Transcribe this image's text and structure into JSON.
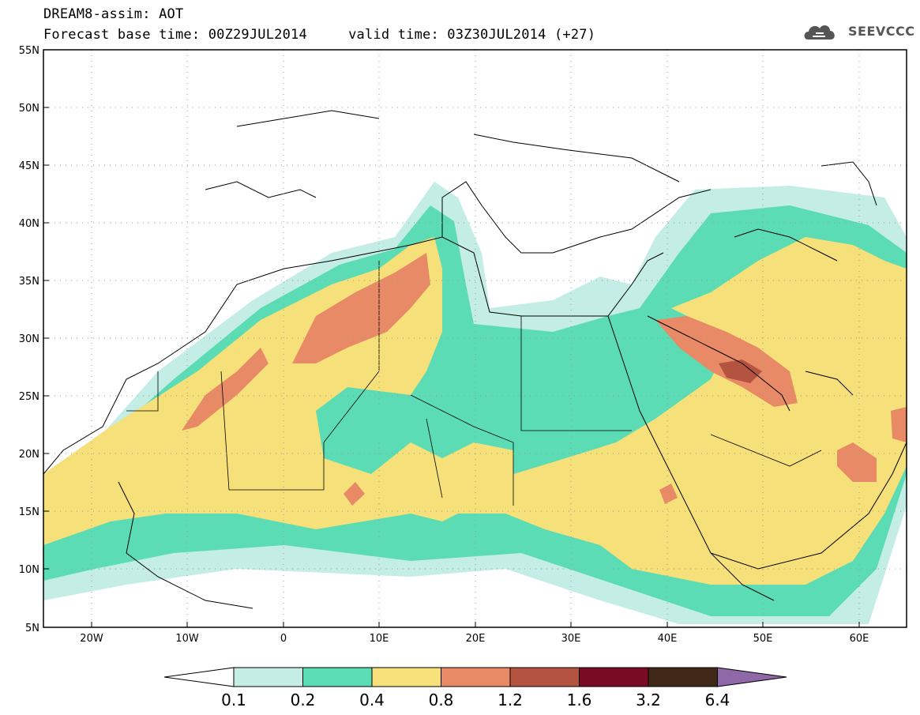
{
  "title": {
    "line1": "DREAM8-assim: AOT",
    "line2": "Forecast base time: 00Z29JUL2014     valid time: 03Z30JUL2014 (+27)"
  },
  "logo": {
    "text": "SEEVCCC"
  },
  "axes": {
    "lat_labels": [
      "55N",
      "50N",
      "45N",
      "40N",
      "35N",
      "30N",
      "25N",
      "20N",
      "15N",
      "10N",
      "5N"
    ],
    "lon_labels": [
      "20W",
      "10W",
      "0",
      "10E",
      "20E",
      "30E",
      "40E",
      "50E",
      "60E"
    ],
    "lat_range": [
      5,
      55
    ],
    "lon_range": [
      -25,
      65
    ]
  },
  "colorbar": {
    "labels": [
      "0.1",
      "0.2",
      "0.4",
      "0.8",
      "1.2",
      "1.6",
      "3.2",
      "6.4"
    ],
    "colors": [
      "#ffffff",
      "#c4ede6",
      "#5cdcb4",
      "#f5e07a",
      "#e88a66",
      "#b45440",
      "#7a0b25",
      "#3f2817",
      "#8f68a8"
    ]
  }
}
